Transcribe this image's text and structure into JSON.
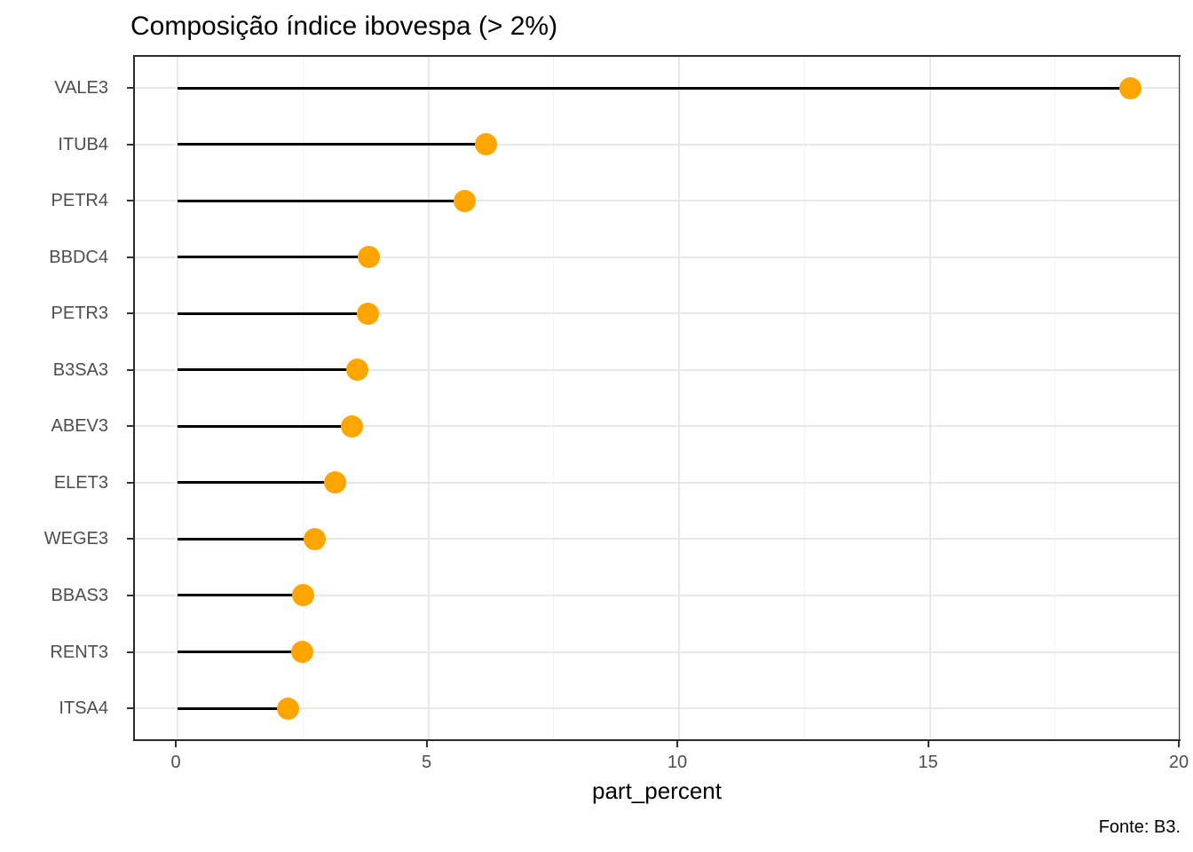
{
  "title": "Composição índice ibovespa (> 2%)",
  "caption": "Fonte: B3.",
  "colors": {
    "point": "#FFA500",
    "stem": "#000000",
    "axis_text": "#4D4D4D",
    "title_text": "#000000",
    "panel_border": "#2B2B2B",
    "tick_mark": "#333333",
    "grid_major": "#E8E8E8",
    "grid_minor": "#F4F4F4",
    "background": "#FFFFFF"
  },
  "chart_data": {
    "type": "bar",
    "subtype": "lollipop",
    "orientation": "horizontal",
    "title": "Composição índice ibovespa (> 2%)",
    "xlabel": "part_percent",
    "ylabel": "",
    "caption": "Fonte: B3.",
    "categories": [
      "VALE3",
      "ITUB4",
      "PETR4",
      "BBDC4",
      "PETR3",
      "B3SA3",
      "ABEV3",
      "ELET3",
      "WEGE3",
      "BBAS3",
      "RENT3",
      "ITSA4"
    ],
    "values": [
      19.0,
      6.15,
      5.72,
      3.82,
      3.8,
      3.59,
      3.47,
      3.14,
      2.73,
      2.51,
      2.48,
      2.21
    ],
    "xlim": [
      0,
      20
    ],
    "x_major_ticks": [
      0,
      5,
      10,
      15,
      20
    ],
    "x_minor_ticks": [
      2.5,
      7.5,
      12.5,
      17.5
    ],
    "grid": true,
    "legend": false,
    "point_color": "#FFA500"
  }
}
